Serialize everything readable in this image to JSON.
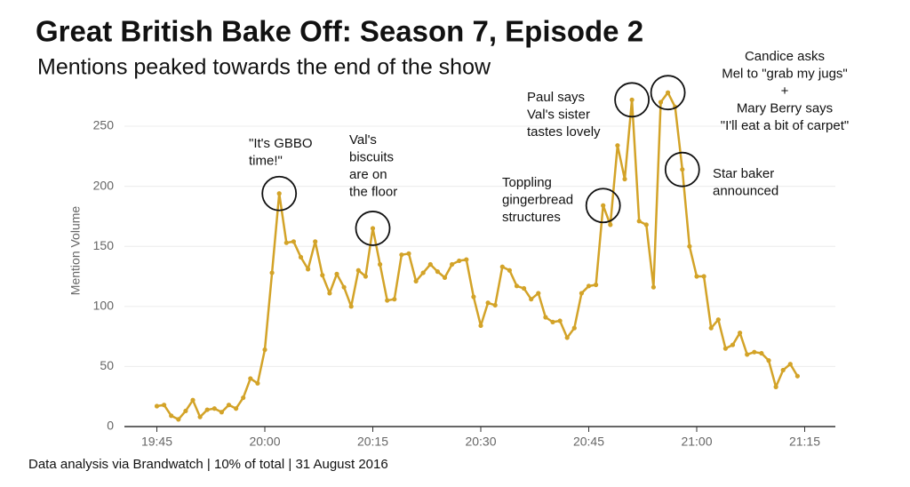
{
  "chart_data": {
    "type": "line",
    "title": "Great British Bake Off: Season 7, Episode 2",
    "subtitle": "Mentions peaked towards the end of the show",
    "y_label": "Mention Volume",
    "footer": "Data analysis via Brandwatch | 10% of total | 31 August 2016",
    "color": "#d3a328",
    "grid": true,
    "xlim": [
      "19:40",
      "21:20"
    ],
    "xticks": [
      "19:45",
      "20:00",
      "20:15",
      "20:30",
      "20:45",
      "21:00",
      "21:15"
    ],
    "ylim": [
      0,
      270
    ],
    "yticks": [
      0,
      50,
      100,
      150,
      200,
      250
    ],
    "x": [
      "19:45",
      "19:46",
      "19:47",
      "19:48",
      "19:49",
      "19:50",
      "19:51",
      "19:52",
      "19:53",
      "19:54",
      "19:55",
      "19:56",
      "19:57",
      "19:58",
      "19:59",
      "20:00",
      "20:01",
      "20:02",
      "20:03",
      "20:04",
      "20:05",
      "20:06",
      "20:07",
      "20:08",
      "20:09",
      "20:10",
      "20:11",
      "20:12",
      "20:13",
      "20:14",
      "20:15",
      "20:16",
      "20:17",
      "20:18",
      "20:19",
      "20:20",
      "20:21",
      "20:22",
      "20:23",
      "20:24",
      "20:25",
      "20:26",
      "20:27",
      "20:28",
      "20:29",
      "20:30",
      "20:31",
      "20:32",
      "20:33",
      "20:34",
      "20:35",
      "20:36",
      "20:37",
      "20:38",
      "20:39",
      "20:40",
      "20:41",
      "20:42",
      "20:43",
      "20:44",
      "20:45",
      "20:46",
      "20:47",
      "20:48",
      "20:49",
      "20:50",
      "20:51",
      "20:52",
      "20:53",
      "20:54",
      "20:55",
      "20:56",
      "20:57",
      "20:58",
      "20:59",
      "21:00",
      "21:01",
      "21:02",
      "21:03",
      "21:04",
      "21:05",
      "21:06",
      "21:07",
      "21:08",
      "21:09",
      "21:10",
      "21:11",
      "21:12",
      "21:13",
      "21:14"
    ],
    "values": [
      17,
      18,
      9,
      6,
      13,
      22,
      8,
      14,
      15,
      12,
      18,
      15,
      24,
      40,
      36,
      64,
      128,
      194,
      153,
      154,
      141,
      131,
      154,
      126,
      111,
      127,
      116,
      100,
      130,
      125,
      165,
      135,
      105,
      106,
      143,
      144,
      121,
      128,
      135,
      129,
      124,
      135,
      138,
      139,
      108,
      84,
      103,
      101,
      133,
      130,
      117,
      115,
      106,
      111,
      91,
      87,
      88,
      74,
      82,
      111,
      117,
      118,
      184,
      168,
      234,
      206,
      272,
      171,
      168,
      116,
      270,
      278,
      266,
      214,
      150,
      125,
      125,
      82,
      89,
      65,
      68,
      78,
      60,
      62,
      61,
      55,
      33,
      47,
      52,
      42
    ],
    "annotations": [
      {
        "lines": [
          "\"It's GBBO",
          "time!\""
        ]
      },
      {
        "lines": [
          "Val's",
          "biscuits",
          "are on",
          "the floor"
        ]
      },
      {
        "lines": [
          "Toppling",
          "gingerbread",
          "structures"
        ]
      },
      {
        "lines": [
          "Paul says",
          "Val's sister",
          "tastes lovely"
        ]
      },
      {
        "lines": [
          "Candice asks",
          "Mel to \"grab my jugs\"",
          "+",
          "Mary Berry says",
          "\"I'll eat a bit of carpet\""
        ]
      },
      {
        "lines": [
          "Star baker",
          "announced"
        ]
      }
    ]
  }
}
